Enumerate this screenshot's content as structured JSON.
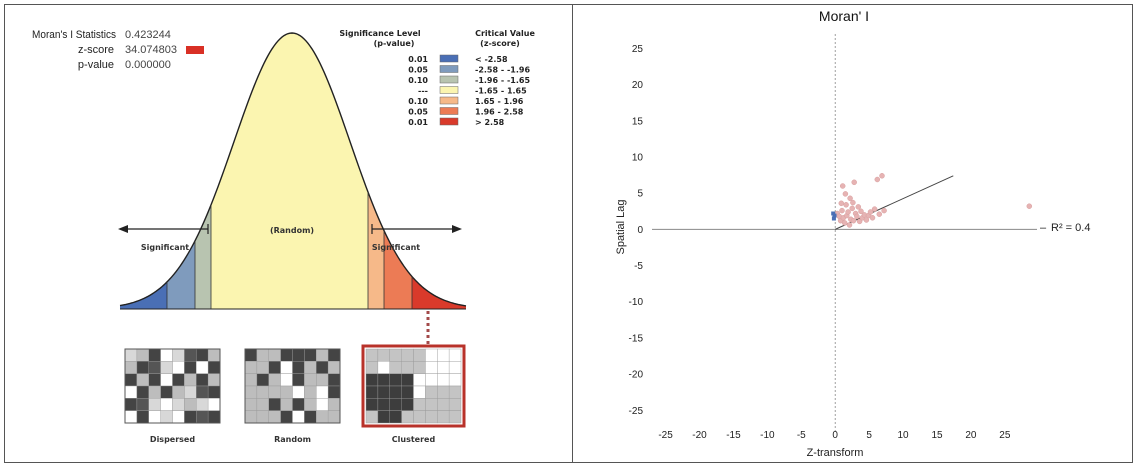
{
  "left_panel": {
    "stats": [
      {
        "label": "Moran's I Statistics",
        "value": "0.423244"
      },
      {
        "label": "z-score",
        "value": "34.074803"
      },
      {
        "label": "p-value",
        "value": "0.000000"
      }
    ],
    "zscore_swatch_color": "#d93025",
    "legend": {
      "header_sig": "Significance Level",
      "header_sig_sub": "(p-value)",
      "header_crit": "Critical Value",
      "header_crit_sub": "(z-score)",
      "rows": [
        {
          "p": "0.01",
          "z": "< -2.58",
          "color": "#4a6fb5"
        },
        {
          "p": "0.05",
          "z": "-2.58 - -1.96",
          "color": "#7f9bbd"
        },
        {
          "p": "0.10",
          "z": "-1.96 - -1.65",
          "color": "#b8c4b0"
        },
        {
          "p": "---",
          "z": "-1.65 - 1.65",
          "color": "#fbf5b0"
        },
        {
          "p": "0.10",
          "z": "1.65 - 1.96",
          "color": "#f6b989"
        },
        {
          "p": "0.05",
          "z": "1.96 - 2.58",
          "color": "#ec7b55"
        },
        {
          "p": "0.01",
          "z": "> 2.58",
          "color": "#d93a2b"
        }
      ]
    },
    "curve_labels": {
      "random": "(Random)",
      "significant_left": "Significant",
      "significant_right": "Significant"
    },
    "maps": [
      {
        "label": "Dispersed"
      },
      {
        "label": "Random"
      },
      {
        "label": "Clustered"
      }
    ]
  },
  "chart_data": {
    "type": "scatter",
    "title": "Moran' I",
    "xlabel": "Z-transform",
    "ylabel": "Spatial Lag",
    "xlim": [
      -27,
      29
    ],
    "ylim": [
      -28,
      27
    ],
    "xticks": [
      -25,
      -20,
      -15,
      -10,
      -5,
      0,
      5,
      10,
      15,
      20,
      25
    ],
    "yticks": [
      25,
      20,
      15,
      10,
      5,
      0,
      -5,
      -10,
      -15,
      -20,
      -25
    ],
    "annotation": "R² = 0.4",
    "annotation_prefix": "–",
    "regression": {
      "x": [
        0,
        17.4
      ],
      "y": [
        0,
        7.4
      ]
    },
    "point_color": "#e6b3b3",
    "highlight_color": "#4a6fb5",
    "points": [
      {
        "x": 0.3,
        "y": 2.2
      },
      {
        "x": 0.6,
        "y": 1.8
      },
      {
        "x": 0.8,
        "y": 1.2
      },
      {
        "x": 1.0,
        "y": 2.6
      },
      {
        "x": 1.2,
        "y": 1.6
      },
      {
        "x": 1.4,
        "y": 0.9
      },
      {
        "x": 1.6,
        "y": 3.4
      },
      {
        "x": 1.7,
        "y": 1.9
      },
      {
        "x": 1.9,
        "y": 2.4
      },
      {
        "x": 2.1,
        "y": 0.6
      },
      {
        "x": 2.2,
        "y": 4.3
      },
      {
        "x": 2.3,
        "y": 1.4
      },
      {
        "x": 2.5,
        "y": 2.9
      },
      {
        "x": 2.7,
        "y": 1.2
      },
      {
        "x": 2.8,
        "y": 6.5
      },
      {
        "x": 3.0,
        "y": 2.2
      },
      {
        "x": 3.2,
        "y": 1.8
      },
      {
        "x": 3.4,
        "y": 3.1
      },
      {
        "x": 3.6,
        "y": 1.1
      },
      {
        "x": 3.8,
        "y": 2.5
      },
      {
        "x": 4.0,
        "y": 1.6
      },
      {
        "x": 4.3,
        "y": 2.0
      },
      {
        "x": 4.6,
        "y": 1.3
      },
      {
        "x": 4.9,
        "y": 1.9
      },
      {
        "x": 5.2,
        "y": 2.4
      },
      {
        "x": 5.5,
        "y": 1.6
      },
      {
        "x": 5.8,
        "y": 2.8
      },
      {
        "x": 6.2,
        "y": 6.9
      },
      {
        "x": 6.5,
        "y": 2.1
      },
      {
        "x": 6.9,
        "y": 7.4
      },
      {
        "x": 7.2,
        "y": 2.6
      },
      {
        "x": 1.1,
        "y": 6.0
      },
      {
        "x": 0.9,
        "y": 3.6
      },
      {
        "x": 1.5,
        "y": 4.9
      },
      {
        "x": 2.6,
        "y": 3.7
      },
      {
        "x": 28.6,
        "y": 3.2
      }
    ],
    "highlight_points": [
      {
        "x": -0.3,
        "y": 2.2
      },
      {
        "x": -0.2,
        "y": 1.5
      },
      {
        "x": -0.1,
        "y": 1.9
      }
    ]
  }
}
